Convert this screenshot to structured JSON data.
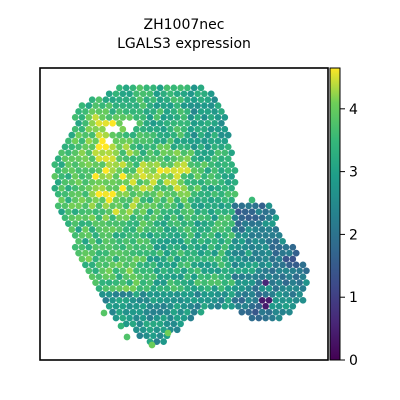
{
  "chart_data": {
    "type": "scatter",
    "subtype": "spatial hexagonal spot map",
    "title_line1": "ZH1007nec",
    "title_line2": "LGALS3 expression",
    "xlabel": "",
    "ylabel": "",
    "axes_ticks": false,
    "grid": false,
    "colormap": "viridis",
    "colorbar": {
      "range": [
        0,
        4.65
      ],
      "ticks": [
        0,
        1,
        2,
        3,
        4
      ],
      "tick_labels": [
        "0",
        "1",
        "2",
        "3",
        "4"
      ]
    },
    "value_summary": {
      "typical_range": [
        2.3,
        4.5
      ],
      "high_region": "upper-left lobe (yellow, ~4.2-4.6)",
      "mid_region": "lower-right lobe (teal, ~2.0-2.8)",
      "low_outliers": [
        0.4,
        0.6
      ]
    },
    "colors": {
      "v0": "#440154",
      "v1": "#3b528b",
      "v2": "#21918c",
      "v3": "#5ec962",
      "v4": "#fde725"
    }
  }
}
